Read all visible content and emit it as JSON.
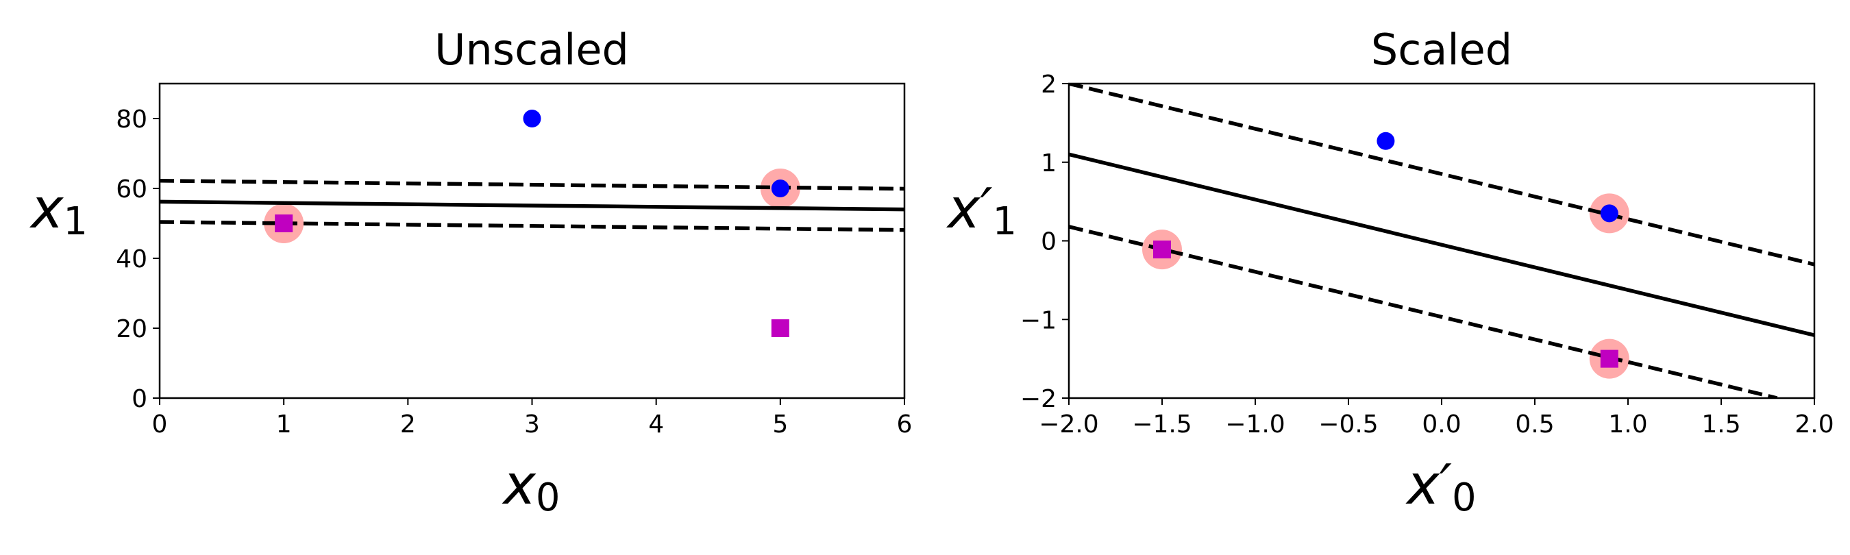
{
  "chart_data": [
    {
      "type": "scatter",
      "title": "Unscaled",
      "xlabel": "x",
      "xlabel_sub": "0",
      "ylabel": "x",
      "ylabel_sub": "1",
      "xlim": [
        0,
        6
      ],
      "ylim": [
        0,
        90
      ],
      "xticks": [
        0,
        1,
        2,
        3,
        4,
        5,
        6
      ],
      "yticks": [
        0,
        20,
        40,
        60,
        80
      ],
      "xtick_labels": [
        "0",
        "1",
        "2",
        "3",
        "4",
        "5",
        "6"
      ],
      "ytick_labels": [
        "0",
        "20",
        "40",
        "60",
        "80"
      ],
      "grid": false,
      "series": [
        {
          "marker": "circle",
          "color": "#0000ff",
          "points": [
            [
              3,
              80
            ],
            [
              5,
              60
            ]
          ]
        },
        {
          "marker": "square",
          "color": "#c000c0",
          "points": [
            [
              1,
              50
            ],
            [
              5,
              20
            ]
          ]
        }
      ],
      "support_vectors": {
        "color": "#ffaaaa",
        "points": [
          [
            1,
            50
          ],
          [
            5,
            60
          ]
        ]
      },
      "lines": [
        {
          "style": "solid",
          "color": "#000000",
          "points": [
            [
              0,
              56.2
            ],
            [
              6,
              54.0
            ]
          ]
        },
        {
          "style": "dashed",
          "color": "#000000",
          "points": [
            [
              0,
              62.2
            ],
            [
              6,
              59.9
            ]
          ]
        },
        {
          "style": "dashed",
          "color": "#000000",
          "points": [
            [
              0,
              50.4
            ],
            [
              6,
              48.1
            ]
          ]
        }
      ]
    },
    {
      "type": "scatter",
      "title": "Scaled",
      "xlabel": "x′",
      "xlabel_sub": "0",
      "ylabel": "x′",
      "ylabel_sub": "1",
      "xlim": [
        -2.0,
        2.0
      ],
      "ylim": [
        -2,
        2
      ],
      "xticks": [
        -2.0,
        -1.5,
        -1.0,
        -0.5,
        0.0,
        0.5,
        1.0,
        1.5,
        2.0
      ],
      "yticks": [
        -2,
        -1,
        0,
        1,
        2
      ],
      "xtick_labels": [
        "−2.0",
        "−1.5",
        "−1.0",
        "−0.5",
        "0.0",
        "0.5",
        "1.0",
        "1.5",
        "2.0"
      ],
      "ytick_labels": [
        "−2",
        "−1",
        "0",
        "1",
        "2"
      ],
      "grid": false,
      "series": [
        {
          "marker": "circle",
          "color": "#0000ff",
          "points": [
            [
              -0.3,
              1.27
            ],
            [
              0.9,
              0.35
            ]
          ]
        },
        {
          "marker": "square",
          "color": "#c000c0",
          "points": [
            [
              -1.5,
              -0.11
            ],
            [
              0.9,
              -1.5
            ]
          ]
        }
      ],
      "support_vectors": {
        "color": "#ffaaaa",
        "points": [
          [
            -1.5,
            -0.11
          ],
          [
            0.9,
            0.35
          ],
          [
            0.9,
            -1.5
          ]
        ]
      },
      "lines": [
        {
          "style": "solid",
          "color": "#000000",
          "points": [
            [
              -2.0,
              1.1
            ],
            [
              2.0,
              -1.2
            ]
          ]
        },
        {
          "style": "dashed",
          "color": "#000000",
          "points": [
            [
              -2.0,
              2.0
            ],
            [
              2.0,
              -0.3
            ]
          ]
        },
        {
          "style": "dashed",
          "color": "#000000",
          "points": [
            [
              -2.0,
              0.18
            ],
            [
              1.8,
              -2.0
            ]
          ]
        }
      ]
    }
  ]
}
